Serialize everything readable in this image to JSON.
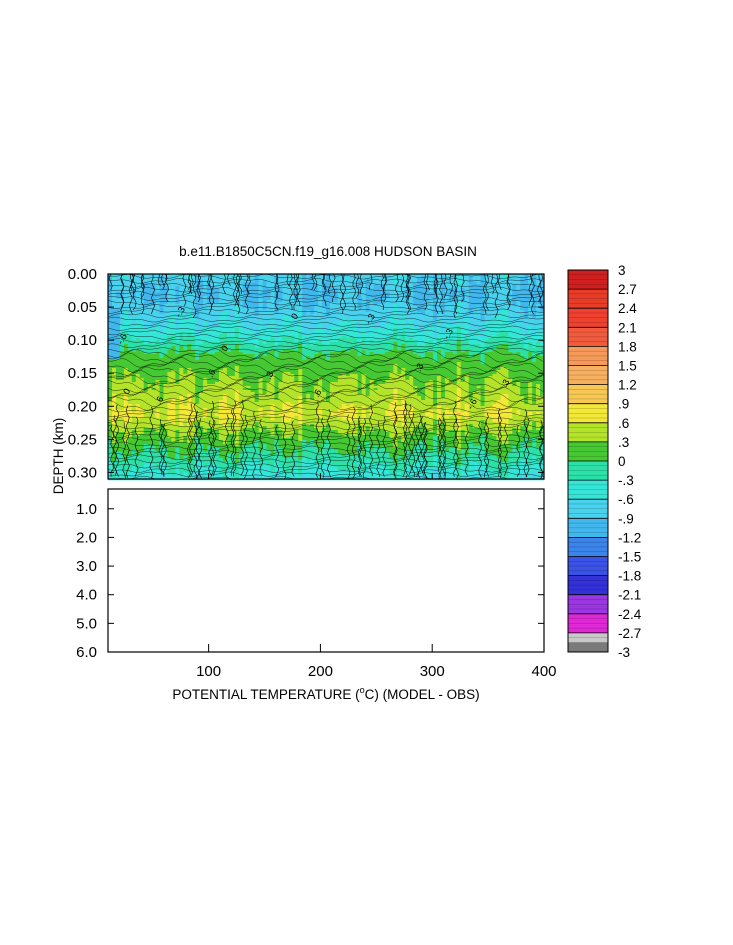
{
  "chart_data": {
    "type": "heatmap",
    "title": "b.e11.B1850C5CN.f19_g16.008 HUDSON BASIN",
    "xlabel": "POTENTIAL TEMPERATURE (°C) (MODEL - OBS)",
    "ylabel": "DEPTH (km)",
    "xlim": [
      10,
      400
    ],
    "x_ticks": [
      "100",
      "200",
      "300",
      "400"
    ],
    "x_tick_values": [
      100,
      200,
      300,
      400
    ],
    "upper_panel": {
      "ylim": [
        0.0,
        0.31
      ],
      "y_ticks": [
        "0.00",
        "0.05",
        "0.10",
        "0.15",
        "0.20",
        "0.25",
        "0.30"
      ],
      "y_tick_values": [
        0.0,
        0.05,
        0.1,
        0.15,
        0.2,
        0.25,
        0.3
      ],
      "depth_profile": [
        {
          "depth": 0.0,
          "value": -0.6
        },
        {
          "depth": 0.03,
          "value": -0.8
        },
        {
          "depth": 0.06,
          "value": -0.6
        },
        {
          "depth": 0.09,
          "value": -0.3
        },
        {
          "depth": 0.12,
          "value": 0.2
        },
        {
          "depth": 0.15,
          "value": 0.4
        },
        {
          "depth": 0.17,
          "value": 0.5
        },
        {
          "depth": 0.19,
          "value": 0.6
        },
        {
          "depth": 0.21,
          "value": 0.8
        },
        {
          "depth": 0.24,
          "value": 0.4
        },
        {
          "depth": 0.27,
          "value": 0.1
        },
        {
          "depth": 0.31,
          "value": -0.4
        }
      ]
    },
    "lower_panel": {
      "ylim": [
        0.31,
        6.0
      ],
      "y_ticks": [
        "1.0",
        "2.0",
        "3.0",
        "4.0",
        "5.0",
        "6.0"
      ],
      "y_tick_values": [
        1.0,
        2.0,
        3.0,
        4.0,
        5.0,
        6.0
      ]
    },
    "colorbar": {
      "labels": [
        "3",
        "2.7",
        "2.4",
        "2.1",
        "1.8",
        "1.5",
        "1.2",
        ".9",
        ".6",
        ".3",
        "0",
        "-.3",
        "-.6",
        "-.9",
        "-1.2",
        "-1.5",
        "-1.8",
        "-2.1",
        "-2.4",
        "-2.7",
        "-3"
      ],
      "values": [
        3,
        2.7,
        2.4,
        2.1,
        1.8,
        1.5,
        1.2,
        0.9,
        0.6,
        0.3,
        0,
        -0.3,
        -0.6,
        -0.9,
        -1.2,
        -1.5,
        -1.8,
        -2.1,
        -2.4,
        -2.7,
        -3
      ],
      "colors": [
        "#d11e1e",
        "#e63c28",
        "#f04030",
        "#f25a3c",
        "#f59a5a",
        "#f6b060",
        "#f8c852",
        "#f3e838",
        "#b4e42a",
        "#45c832",
        "#2ce0a8",
        "#34e6d8",
        "#48d2ee",
        "#40b8ee",
        "#3a84ea",
        "#3a52e6",
        "#3232d6",
        "#9a36e2",
        "#e028d6",
        "#c8c8c8",
        "#7a7a7a"
      ]
    },
    "contour_labels": [
      "-.6",
      "-.3",
      "0",
      ".3",
      ".6",
      ".6",
      "-.3",
      "0",
      ".3",
      "-.6",
      ".3",
      ".6",
      "0",
      "-.3"
    ]
  }
}
